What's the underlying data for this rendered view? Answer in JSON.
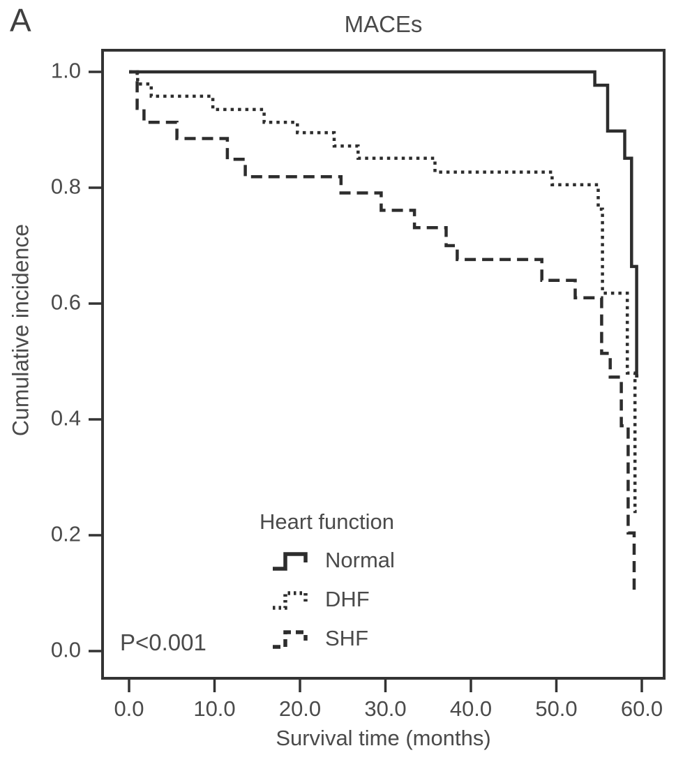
{
  "panel_label": "A",
  "title": "MACEs",
  "p_value": "P<0.001",
  "axes": {
    "x": {
      "label": "Survival time (months)",
      "tick_labels": [
        "0.0",
        "10.0",
        "20.0",
        "30.0",
        "40.0",
        "50.0",
        "60.0"
      ],
      "tick_values": [
        0,
        10,
        20,
        30,
        40,
        50,
        60
      ],
      "range": [
        0,
        60
      ]
    },
    "y": {
      "label": "Cumulative incidence",
      "tick_labels": [
        "0.0",
        "0.2",
        "0.4",
        "0.6",
        "0.8",
        "1.0"
      ],
      "tick_values": [
        0,
        0.2,
        0.4,
        0.6,
        0.8,
        1.0
      ],
      "range": [
        0,
        1
      ]
    }
  },
  "legend": {
    "title": "Heart function",
    "items": [
      {
        "label": "Normal",
        "style": "solid"
      },
      {
        "label": "DHF",
        "style": "dotted"
      },
      {
        "label": "SHF",
        "style": "dashed"
      }
    ]
  },
  "colors": {
    "line": "#2d2d2d",
    "frame": "#333333",
    "text": "#4a4a4a",
    "background": "#ffffff"
  },
  "chart_data": {
    "type": "line",
    "subtype": "kaplan-meier-step",
    "title": "MACEs",
    "xlabel": "Survival time (months)",
    "ylabel": "Cumulative incidence",
    "xlim": [
      0,
      60
    ],
    "ylim": [
      0,
      1
    ],
    "grid": false,
    "legend_position": "inside-bottom-center",
    "annotation": "P<0.001",
    "legend_title": "Heart function",
    "series": [
      {
        "name": "Normal",
        "line_style": "solid",
        "points": [
          [
            0,
            1.0
          ],
          [
            54.5,
            0.977
          ],
          [
            56.0,
            0.898
          ],
          [
            58.0,
            0.851
          ],
          [
            58.8,
            0.664
          ],
          [
            59.4,
            0.475
          ],
          [
            59.6,
            0.475
          ]
        ]
      },
      {
        "name": "DHF",
        "line_style": "dotted",
        "points": [
          [
            0,
            1.0
          ],
          [
            1.0,
            0.979
          ],
          [
            2.6,
            0.958
          ],
          [
            9.8,
            0.935
          ],
          [
            15.8,
            0.913
          ],
          [
            19.7,
            0.895
          ],
          [
            24.0,
            0.872
          ],
          [
            26.8,
            0.851
          ],
          [
            35.8,
            0.827
          ],
          [
            49.5,
            0.805
          ],
          [
            54.9,
            0.763
          ],
          [
            55.4,
            0.618
          ],
          [
            58.3,
            0.48
          ],
          [
            59.2,
            0.241
          ],
          [
            59.4,
            0.241
          ]
        ]
      },
      {
        "name": "SHF",
        "line_style": "dashed",
        "points": [
          [
            0,
            1.0
          ],
          [
            0.95,
            0.937
          ],
          [
            1.75,
            0.913
          ],
          [
            5.6,
            0.885
          ],
          [
            11.5,
            0.849
          ],
          [
            13.6,
            0.819
          ],
          [
            24.8,
            0.791
          ],
          [
            29.5,
            0.761
          ],
          [
            33.4,
            0.731
          ],
          [
            37.1,
            0.7
          ],
          [
            38.4,
            0.676
          ],
          [
            48.3,
            0.64
          ],
          [
            52.2,
            0.61
          ],
          [
            55.3,
            0.514
          ],
          [
            56.3,
            0.473
          ],
          [
            57.6,
            0.389
          ],
          [
            58.4,
            0.204
          ],
          [
            59.1,
            0.102
          ],
          [
            59.5,
            0.102
          ]
        ]
      }
    ]
  }
}
